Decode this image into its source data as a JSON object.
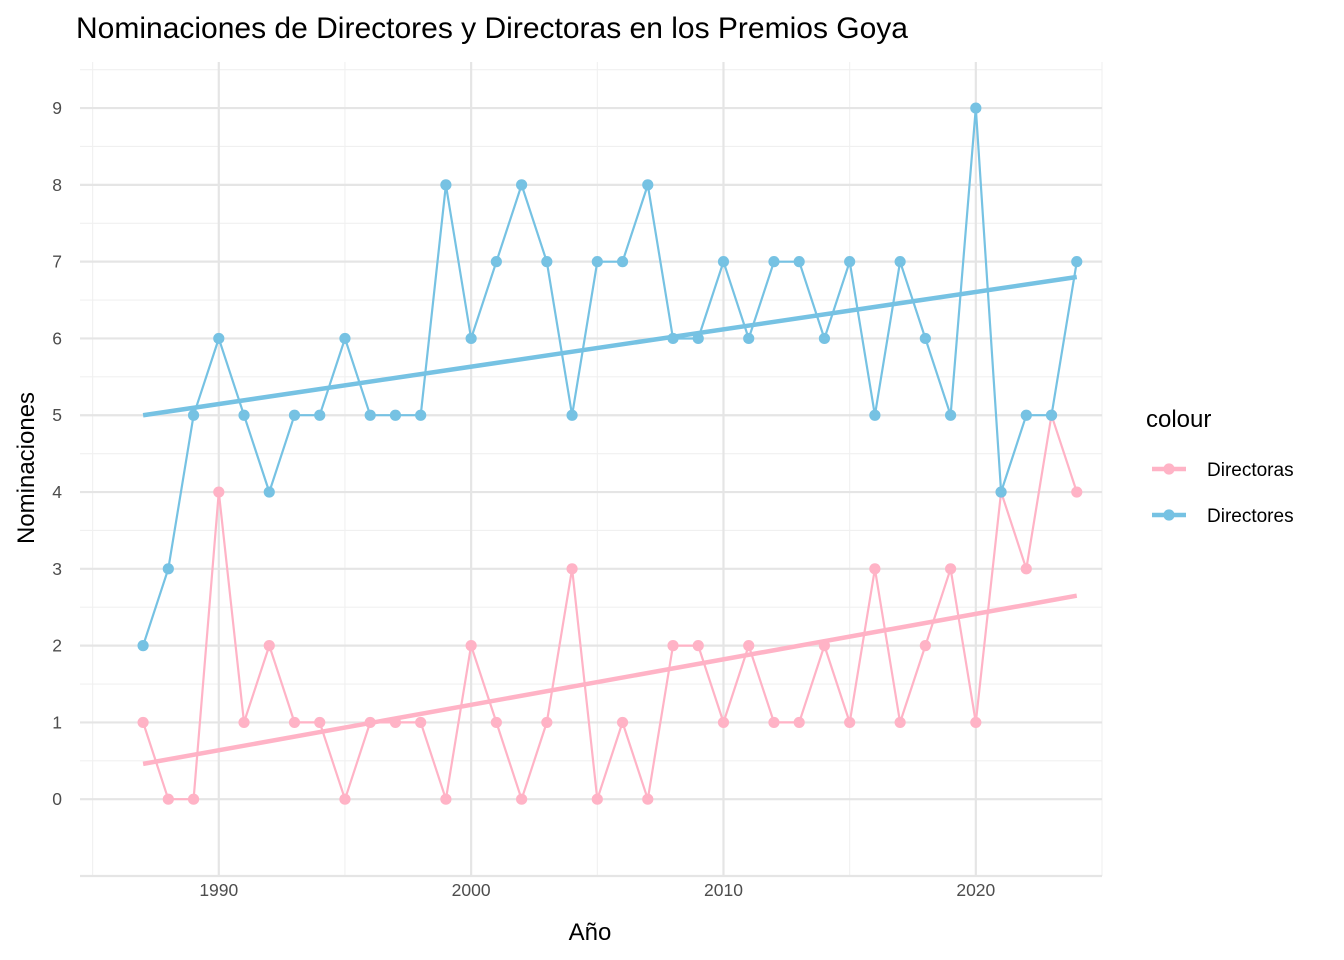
{
  "chart_data": {
    "type": "line",
    "title": "Nominaciones de Directores y Directoras en los Premios Goya",
    "xlabel": "Año",
    "ylabel": "Nominaciones",
    "xlim": [
      1984.5,
      2025
    ],
    "ylim": [
      -1,
      9.6
    ],
    "x_ticks": [
      1990,
      2000,
      2010,
      2020
    ],
    "y_ticks": [
      0,
      1,
      2,
      3,
      4,
      5,
      6,
      7,
      8,
      9
    ],
    "grid": true,
    "legend": {
      "title": "colour",
      "position": "right"
    },
    "x": [
      1987,
      1988,
      1989,
      1990,
      1991,
      1992,
      1993,
      1994,
      1995,
      1996,
      1997,
      1998,
      1999,
      2000,
      2001,
      2002,
      2003,
      2004,
      2005,
      2006,
      2007,
      2008,
      2009,
      2010,
      2011,
      2012,
      2013,
      2014,
      2015,
      2016,
      2017,
      2018,
      2019,
      2020,
      2021,
      2022,
      2023,
      2024
    ],
    "series": [
      {
        "name": "Directoras",
        "color": "#ffb3c6",
        "values": [
          1,
          0,
          0,
          4,
          1,
          2,
          1,
          1,
          0,
          1,
          1,
          1,
          0,
          2,
          1,
          0,
          1,
          3,
          0,
          1,
          0,
          2,
          2,
          1,
          2,
          1,
          1,
          2,
          1,
          3,
          1,
          2,
          3,
          1,
          4,
          3,
          5,
          4
        ],
        "trend": {
          "x": [
            1987,
            2024
          ],
          "y": [
            0.46,
            2.65
          ]
        }
      },
      {
        "name": "Directores",
        "color": "#76c2e3",
        "values": [
          2,
          3,
          5,
          6,
          5,
          4,
          5,
          5,
          6,
          5,
          5,
          5,
          8,
          6,
          7,
          8,
          7,
          5,
          7,
          7,
          8,
          6,
          6,
          7,
          6,
          7,
          7,
          6,
          7,
          5,
          7,
          6,
          5,
          9,
          4,
          5,
          5,
          7
        ],
        "trend": {
          "x": [
            1987,
            2024
          ],
          "y": [
            5.0,
            6.8
          ]
        }
      }
    ]
  }
}
